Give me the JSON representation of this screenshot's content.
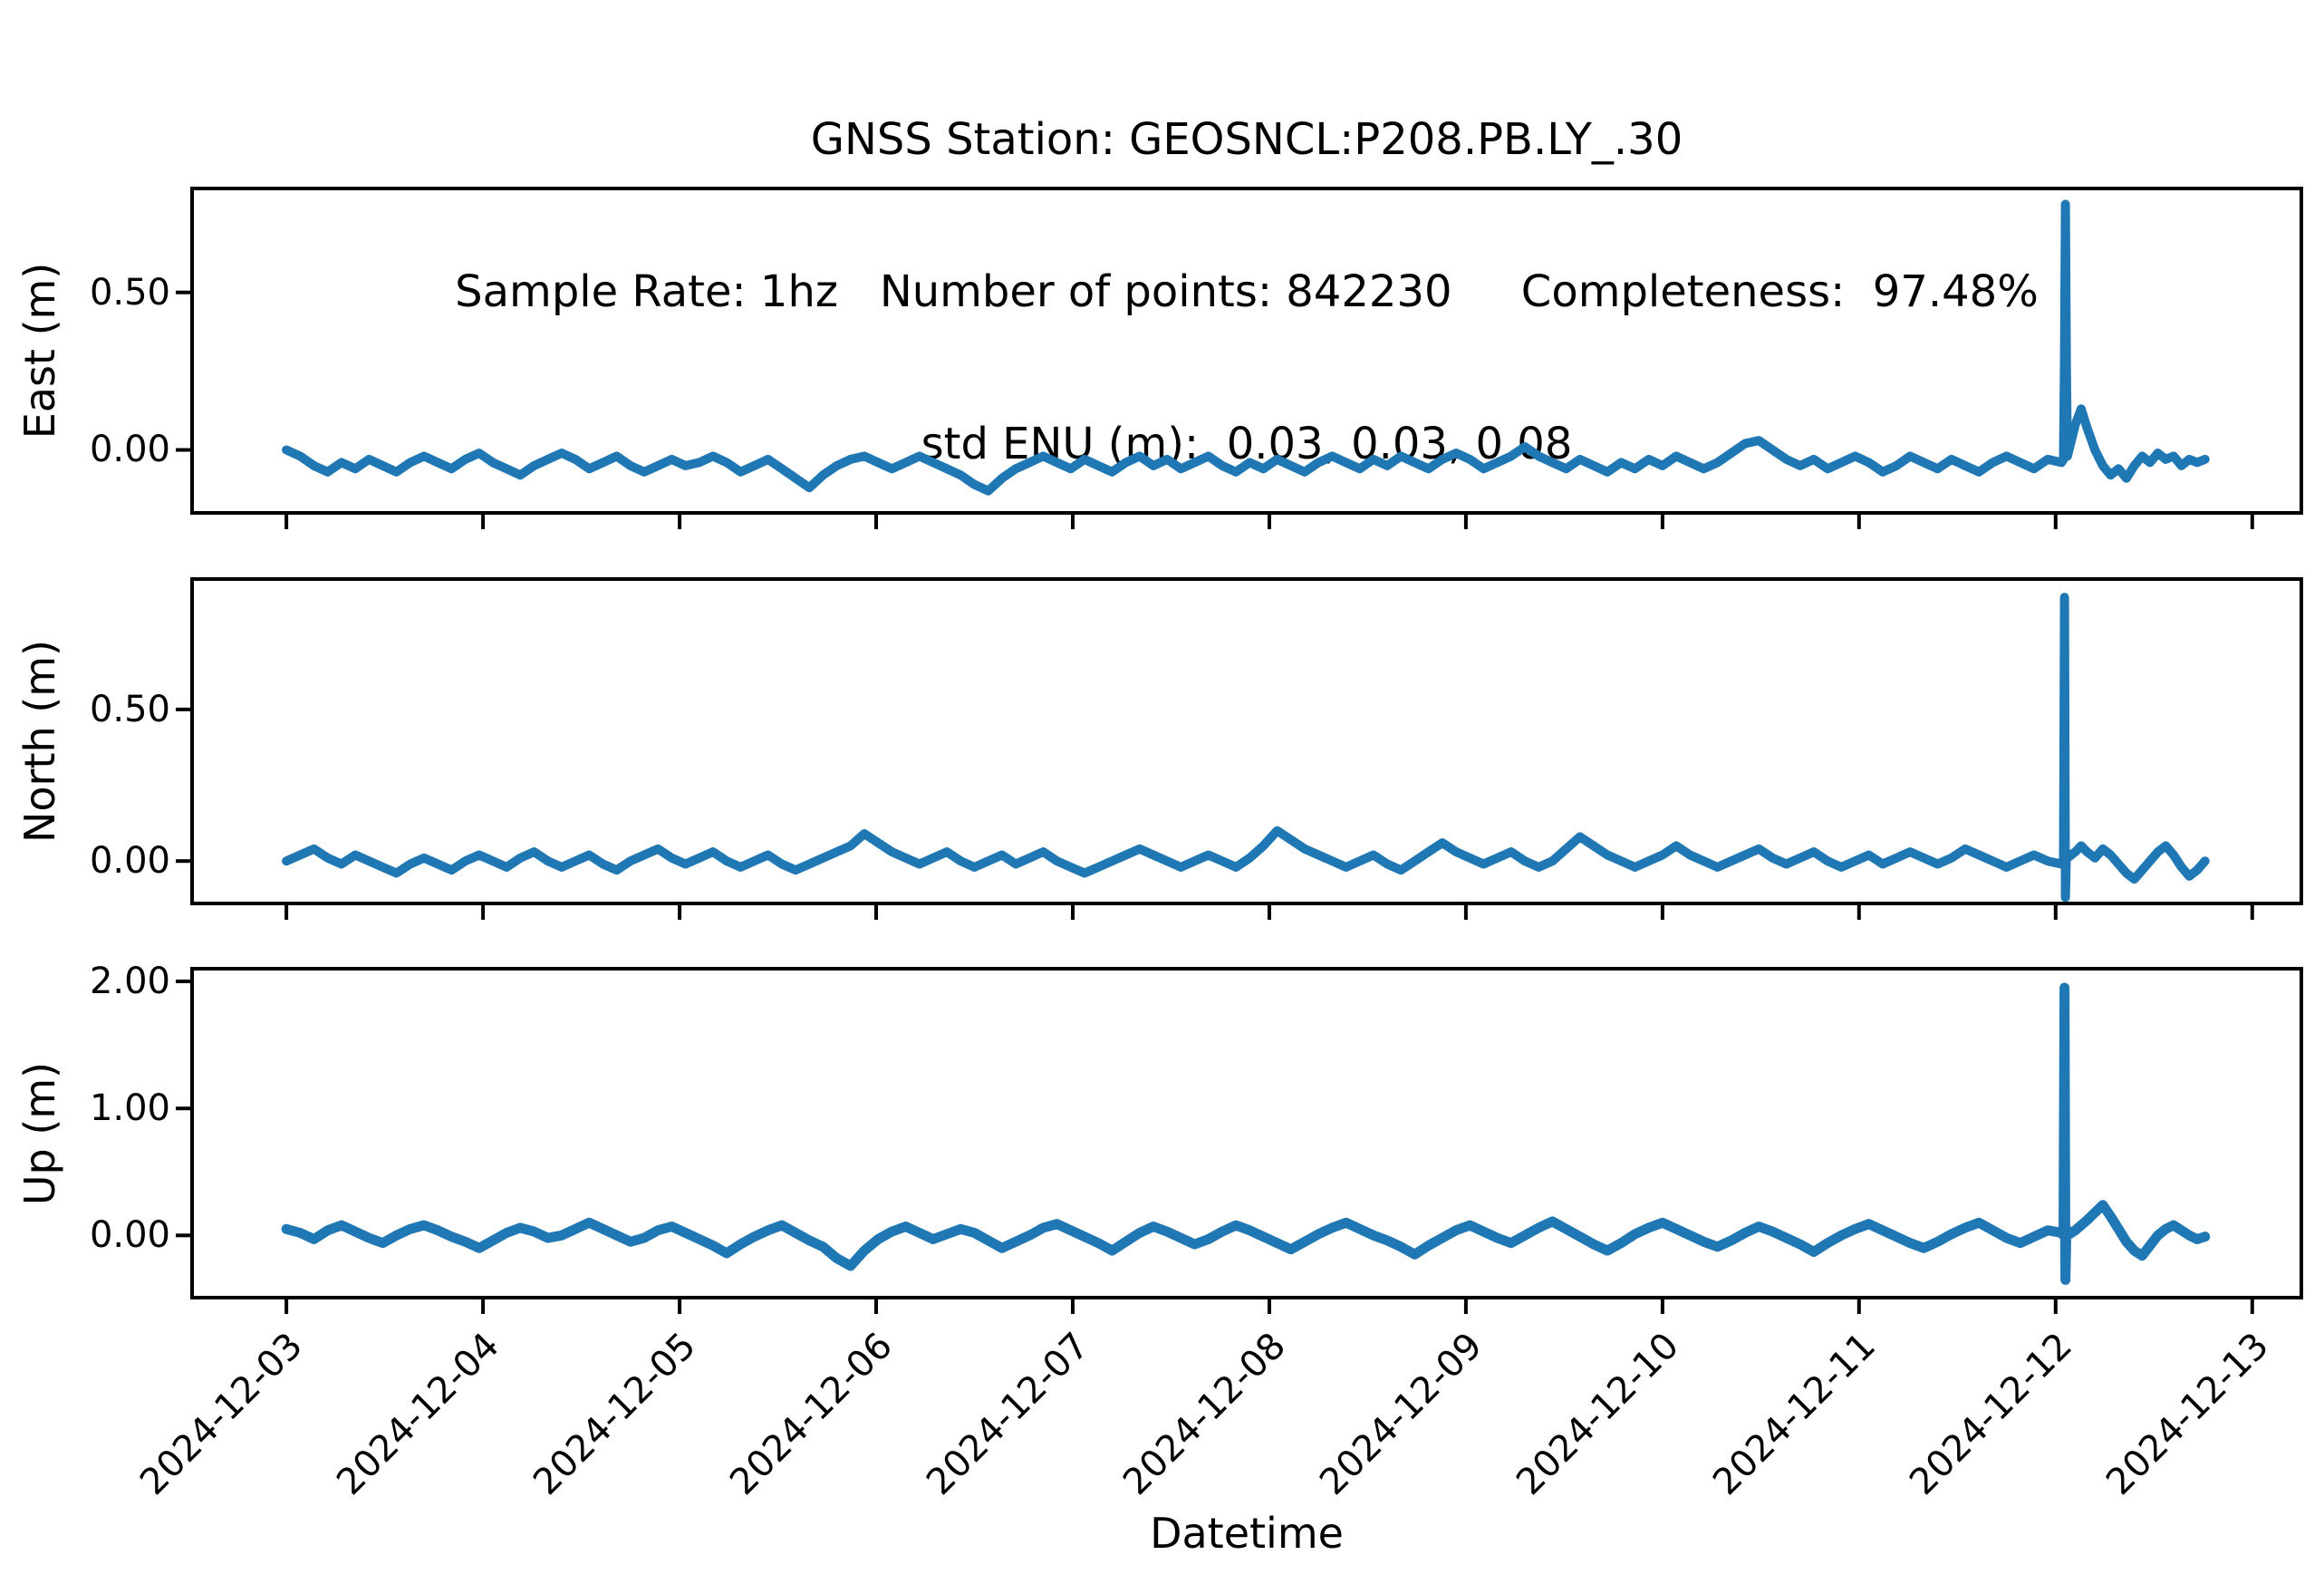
{
  "header": {
    "line1": "GNSS Station: GEOSNCL:P208.PB.LY_.30",
    "line2": "Sample Rate: 1hz   Number of points: 842230     Completeness:  97.48%",
    "line3": "std ENU (m):  0.03, 0.03, 0.08"
  },
  "stats": {
    "station": "GEOSNCL:P208.PB.LY_.30",
    "sample_rate": "1hz",
    "number_of_points": "842230",
    "completeness": "97.48%",
    "std_enu_m": "0.03, 0.03, 0.08"
  },
  "chart_data": {
    "type": "line",
    "title": "GNSS Station: GEOSNCL:P208.PB.LY_.30",
    "xlabel": "Datetime",
    "line_color": "#1f77b4",
    "grid": false,
    "legend": "none",
    "x_axis": {
      "units": "days since 2024-12-03",
      "xlim": [
        -0.48,
        10.25
      ],
      "tick_days": [
        0,
        1,
        2,
        3,
        4,
        5,
        6,
        7,
        8,
        9,
        10
      ],
      "tick_labels": [
        "2024-12-03",
        "2024-12-04",
        "2024-12-05",
        "2024-12-06",
        "2024-12-07",
        "2024-12-08",
        "2024-12-09",
        "2024-12-10",
        "2024-12-11",
        "2024-12-12",
        "2024-12-13"
      ]
    },
    "x_grid": {
      "start": 0.0,
      "step": 0.07,
      "count": 130
    },
    "x_tail": [
      9.04,
      9.045,
      9.05,
      9.055,
      9.06,
      9.1,
      9.13,
      9.16,
      9.2,
      9.24,
      9.28,
      9.32,
      9.36,
      9.4,
      9.44,
      9.48,
      9.52,
      9.56,
      9.6,
      9.64,
      9.68,
      9.72,
      9.76
    ],
    "spike": {
      "date": "2024-12-12",
      "x_days": 9.05,
      "east_peak": 0.78,
      "north_peak": 0.87,
      "up_peak": 1.95
    },
    "subplots": [
      {
        "name": "east",
        "ylabel": "East (m)",
        "ylim": [
          -0.2,
          0.83
        ],
        "yticks": [
          0.0,
          0.5
        ],
        "ytick_labels": [
          "0.00",
          "0.50"
        ],
        "line_width": 10,
        "y": [
          0.0,
          -0.02,
          -0.05,
          -0.07,
          -0.04,
          -0.06,
          -0.03,
          -0.05,
          -0.07,
          -0.04,
          -0.02,
          -0.04,
          -0.06,
          -0.03,
          -0.01,
          -0.04,
          -0.06,
          -0.08,
          -0.05,
          -0.03,
          -0.01,
          -0.03,
          -0.06,
          -0.04,
          -0.02,
          -0.05,
          -0.07,
          -0.05,
          -0.03,
          -0.05,
          -0.04,
          -0.02,
          -0.04,
          -0.07,
          -0.05,
          -0.03,
          -0.06,
          -0.09,
          -0.12,
          -0.08,
          -0.05,
          -0.03,
          -0.02,
          -0.04,
          -0.06,
          -0.04,
          -0.02,
          -0.04,
          -0.06,
          -0.08,
          -0.11,
          -0.13,
          -0.09,
          -0.06,
          -0.04,
          -0.02,
          -0.04,
          -0.06,
          -0.03,
          -0.05,
          -0.07,
          -0.04,
          -0.02,
          -0.05,
          -0.03,
          -0.06,
          -0.04,
          -0.02,
          -0.05,
          -0.07,
          -0.04,
          -0.06,
          -0.03,
          -0.05,
          -0.07,
          -0.04,
          -0.02,
          -0.04,
          -0.06,
          -0.03,
          -0.05,
          -0.02,
          -0.04,
          -0.06,
          -0.03,
          -0.01,
          -0.03,
          -0.06,
          -0.04,
          -0.02,
          0.01,
          -0.02,
          -0.04,
          -0.06,
          -0.03,
          -0.05,
          -0.07,
          -0.04,
          -0.06,
          -0.03,
          -0.05,
          -0.02,
          -0.04,
          -0.06,
          -0.04,
          -0.01,
          0.02,
          0.03,
          0.0,
          -0.03,
          -0.05,
          -0.03,
          -0.06,
          -0.04,
          -0.02,
          -0.04,
          -0.07,
          -0.05,
          -0.02,
          -0.04,
          -0.06,
          -0.03,
          -0.05,
          -0.07,
          -0.04,
          -0.02,
          -0.04,
          -0.06,
          -0.03,
          -0.04,
          -0.03,
          0.3,
          0.78,
          0.25,
          -0.02,
          0.08,
          0.13,
          0.07,
          0.0,
          -0.05,
          -0.08,
          -0.06,
          -0.09,
          -0.05,
          -0.02,
          -0.04,
          -0.01,
          -0.03,
          -0.02,
          -0.05,
          -0.03,
          -0.04,
          -0.03
        ]
      },
      {
        "name": "north",
        "ylabel": "North (m)",
        "ylim": [
          -0.14,
          0.93
        ],
        "yticks": [
          0.0,
          0.5
        ],
        "ytick_labels": [
          "0.00",
          "0.50"
        ],
        "line_width": 10,
        "y": [
          0.0,
          0.02,
          0.04,
          0.01,
          -0.01,
          0.02,
          0.0,
          -0.02,
          -0.04,
          -0.01,
          0.01,
          -0.01,
          -0.03,
          0.0,
          0.02,
          0.0,
          -0.02,
          0.01,
          0.03,
          0.0,
          -0.02,
          0.0,
          0.02,
          -0.01,
          -0.03,
          0.0,
          0.02,
          0.04,
          0.01,
          -0.01,
          0.01,
          0.03,
          0.0,
          -0.02,
          0.0,
          0.02,
          -0.01,
          -0.03,
          -0.01,
          0.01,
          0.03,
          0.05,
          0.09,
          0.06,
          0.03,
          0.01,
          -0.01,
          0.01,
          0.03,
          0.0,
          -0.02,
          0.0,
          0.02,
          -0.01,
          0.01,
          0.03,
          0.0,
          -0.02,
          -0.04,
          -0.02,
          0.0,
          0.02,
          0.04,
          0.02,
          0.0,
          -0.02,
          0.0,
          0.02,
          0.0,
          -0.02,
          0.01,
          0.05,
          0.1,
          0.07,
          0.04,
          0.02,
          0.0,
          -0.02,
          0.0,
          0.02,
          -0.01,
          -0.03,
          0.0,
          0.03,
          0.06,
          0.03,
          0.01,
          -0.01,
          0.01,
          0.03,
          0.0,
          -0.02,
          0.0,
          0.04,
          0.08,
          0.05,
          0.02,
          0.0,
          -0.02,
          0.0,
          0.02,
          0.05,
          0.02,
          0.0,
          -0.02,
          0.0,
          0.02,
          0.04,
          0.01,
          -0.01,
          0.01,
          0.03,
          0.0,
          -0.02,
          0.0,
          0.02,
          -0.01,
          0.01,
          0.03,
          0.01,
          -0.01,
          0.01,
          0.04,
          0.02,
          0.0,
          -0.02,
          0.0,
          0.02,
          0.0,
          -0.01,
          0.0,
          0.87,
          -0.12,
          0.03,
          0.01,
          0.03,
          0.05,
          0.03,
          0.01,
          0.04,
          0.02,
          -0.01,
          -0.04,
          -0.06,
          -0.03,
          0.0,
          0.03,
          0.05,
          0.02,
          -0.02,
          -0.05,
          -0.03,
          0.0
        ]
      },
      {
        "name": "up",
        "ylabel": "Up (m)",
        "ylim": [
          -0.49,
          2.1
        ],
        "yticks": [
          0.0,
          1.0,
          2.0
        ],
        "ytick_labels": [
          "0.00",
          "1.00",
          "2.00"
        ],
        "line_width": 11,
        "y": [
          0.05,
          0.02,
          -0.03,
          0.04,
          0.08,
          0.03,
          -0.02,
          -0.06,
          0.0,
          0.05,
          0.08,
          0.04,
          -0.01,
          -0.05,
          -0.1,
          -0.04,
          0.02,
          0.06,
          0.03,
          -0.02,
          0.0,
          0.05,
          0.1,
          0.05,
          0.0,
          -0.05,
          -0.02,
          0.04,
          0.07,
          0.02,
          -0.03,
          -0.08,
          -0.14,
          -0.07,
          -0.01,
          0.04,
          0.08,
          0.02,
          -0.04,
          -0.09,
          -0.18,
          -0.24,
          -0.12,
          -0.03,
          0.03,
          0.07,
          0.02,
          -0.03,
          0.01,
          0.05,
          0.02,
          -0.04,
          -0.1,
          -0.05,
          0.0,
          0.06,
          0.09,
          0.04,
          -0.01,
          -0.06,
          -0.12,
          -0.05,
          0.02,
          0.07,
          0.03,
          -0.02,
          -0.07,
          -0.03,
          0.03,
          0.08,
          0.04,
          -0.01,
          -0.06,
          -0.11,
          -0.05,
          0.01,
          0.06,
          0.1,
          0.05,
          0.0,
          -0.04,
          -0.09,
          -0.15,
          -0.08,
          -0.02,
          0.04,
          0.08,
          0.03,
          -0.02,
          -0.06,
          0.0,
          0.06,
          0.11,
          0.05,
          -0.01,
          -0.07,
          -0.12,
          -0.06,
          0.01,
          0.06,
          0.1,
          0.05,
          0.0,
          -0.05,
          -0.09,
          -0.04,
          0.02,
          0.07,
          0.03,
          -0.02,
          -0.07,
          -0.13,
          -0.06,
          0.0,
          0.05,
          0.09,
          0.04,
          -0.01,
          -0.06,
          -0.1,
          -0.05,
          0.01,
          0.06,
          0.1,
          0.04,
          -0.02,
          -0.06,
          -0.01,
          0.04,
          0.02,
          0.0,
          1.95,
          -0.35,
          0.05,
          0.0,
          0.04,
          0.08,
          0.12,
          0.18,
          0.24,
          0.15,
          0.05,
          -0.05,
          -0.12,
          -0.16,
          -0.08,
          0.0,
          0.05,
          0.08,
          0.04,
          0.0,
          -0.03,
          -0.01
        ]
      }
    ]
  }
}
